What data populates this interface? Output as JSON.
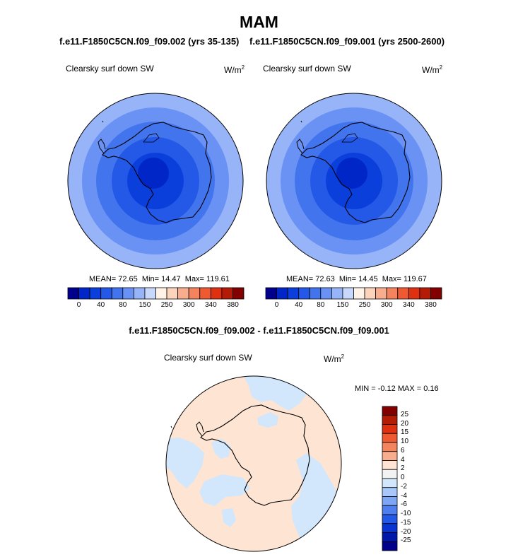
{
  "title": "MAM",
  "panels": [
    {
      "case_title": "f.e11.F1850C5CN.f09_f09.002 (yrs 35-135)",
      "variable": "Clearsky surf down SW",
      "units_base": "W/m",
      "units_exp": "2",
      "stats": {
        "mean": "MEAN= 72.65",
        "min": "Min= 14.47",
        "max": "Max= 119.61"
      }
    },
    {
      "case_title": "f.e11.F1850C5CN.f09_f09.001 (yrs 2500-2600)",
      "variable": "Clearsky surf down SW",
      "units_base": "W/m",
      "units_exp": "2",
      "stats": {
        "mean": "MEAN= 72.63",
        "min": "Min= 14.45",
        "max": "Max= 119.67"
      }
    }
  ],
  "colorbar_top": {
    "colors": [
      "#00008c",
      "#0026c8",
      "#0a3fdc",
      "#2458e6",
      "#4274ee",
      "#6a92f4",
      "#98b4f8",
      "#c8d8fc",
      "#fff2e6",
      "#fcd4bc",
      "#f8ae8e",
      "#f4845e",
      "#f05a32",
      "#e03012",
      "#b41c08",
      "#820000"
    ],
    "tick_labels": [
      "0",
      "40",
      "80",
      "150",
      "250",
      "300",
      "340",
      "380"
    ]
  },
  "difference": {
    "title": "f.e11.F1850C5CN.f09_f09.002 - f.e11.F1850C5CN.f09_f09.001",
    "variable": "Clearsky surf down SW",
    "units_base": "W/m",
    "units_exp": "2",
    "minmax": "MIN =  -0.12 MAX =   0.16"
  },
  "colorbar_diff": {
    "colors": [
      "#820000",
      "#b41c08",
      "#e03012",
      "#f05a32",
      "#f4845e",
      "#f8ae8e",
      "#fee4d2",
      "#f2f2f2",
      "#d2e6fc",
      "#a8c8fa",
      "#7ea6f4",
      "#4e7ef0",
      "#2458e6",
      "#0a34d2",
      "#0018aa",
      "#00008c"
    ],
    "tick_labels": [
      "25",
      "20",
      "15",
      "10",
      "6",
      "4",
      "2",
      "0",
      "-2",
      "-4",
      "-6",
      "-10",
      "-15",
      "-20",
      "-25"
    ]
  },
  "chart_data": {
    "type": "heatmap",
    "projection": "south-polar-stereographic",
    "title": "MAM",
    "panels": [
      {
        "case": "f.e11.F1850C5CN.f09_f09.002 (yrs 35-135)",
        "variable": "Clearsky surf down SW",
        "mean": 72.65,
        "min": 14.47,
        "max": 119.61
      },
      {
        "case": "f.e11.F1850C5CN.f09_f09.001 (yrs 2500-2600)",
        "variable": "Clearsky surf down SW",
        "mean": 72.63,
        "min": 14.45,
        "max": 119.67
      },
      {
        "case": "f.e11.F1850C5CN.f09_f09.002 - f.e11.F1850C5CN.f09_f09.001",
        "variable": "Clearsky surf down SW",
        "min": -0.12,
        "max": 0.16
      }
    ],
    "contour_levels": [
      0,
      40,
      80,
      150,
      250,
      300,
      340,
      380
    ],
    "difference_levels": [
      -25,
      -20,
      -15,
      -10,
      -6,
      -4,
      -2,
      0,
      2,
      4,
      6,
      10,
      15,
      20,
      25
    ]
  }
}
